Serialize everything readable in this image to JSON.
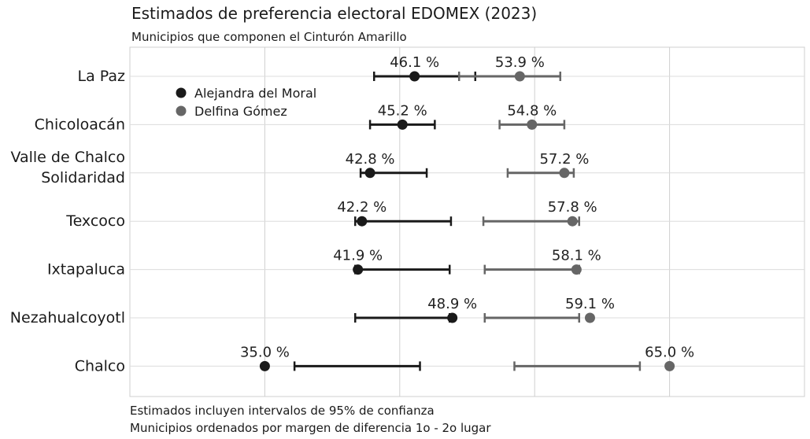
{
  "chart_data": {
    "type": "scatter",
    "title": "Estimados de preferencia electoral EDOMEX (2023)",
    "subtitle": "Municipios que componen el Cinturón Amarillo",
    "captions": [
      "Estimados incluyen intervalos de 95% de confianza",
      "Municipios ordenados por margen de diferencia 1o - 2o lugar"
    ],
    "xlim": [
      25,
      75
    ],
    "grid": true,
    "legend_position": "top-left",
    "categories": [
      [
        "La Paz"
      ],
      [
        "Chicoloacán"
      ],
      [
        "Valle de Chalco",
        "Solidaridad"
      ],
      [
        "Texcoco"
      ],
      [
        "Ixtapaluca"
      ],
      [
        "Nezahualcoyotl"
      ],
      [
        "Chalco"
      ]
    ],
    "series": [
      {
        "name": "Alejandra del Moral",
        "color": "#1a1a1a",
        "values": [
          46.1,
          45.2,
          42.8,
          42.2,
          41.9,
          48.9,
          35.0
        ],
        "labels": [
          "46.1 %",
          "45.2 %",
          "42.8 %",
          "42.2 %",
          "41.9 %",
          "48.9 %",
          "35.0 %"
        ],
        "ci_low": [
          43.1,
          42.8,
          42.1,
          41.7,
          41.7,
          41.7,
          37.2
        ],
        "ci_high": [
          50.6,
          47.6,
          47.0,
          48.8,
          48.7,
          48.7,
          46.5
        ]
      },
      {
        "name": "Delfina Gómez",
        "color": "#666666",
        "values": [
          53.9,
          54.8,
          57.2,
          57.8,
          58.1,
          59.1,
          65.0
        ],
        "labels": [
          "53.9 %",
          "54.8 %",
          "57.2 %",
          "57.8 %",
          "58.1 %",
          "59.1 %",
          "65.0 %"
        ],
        "ci_low": [
          49.4,
          52.4,
          53.0,
          51.2,
          51.3,
          51.3,
          53.5
        ],
        "ci_high": [
          56.9,
          57.2,
          57.9,
          58.3,
          58.3,
          58.3,
          62.8
        ]
      }
    ]
  }
}
